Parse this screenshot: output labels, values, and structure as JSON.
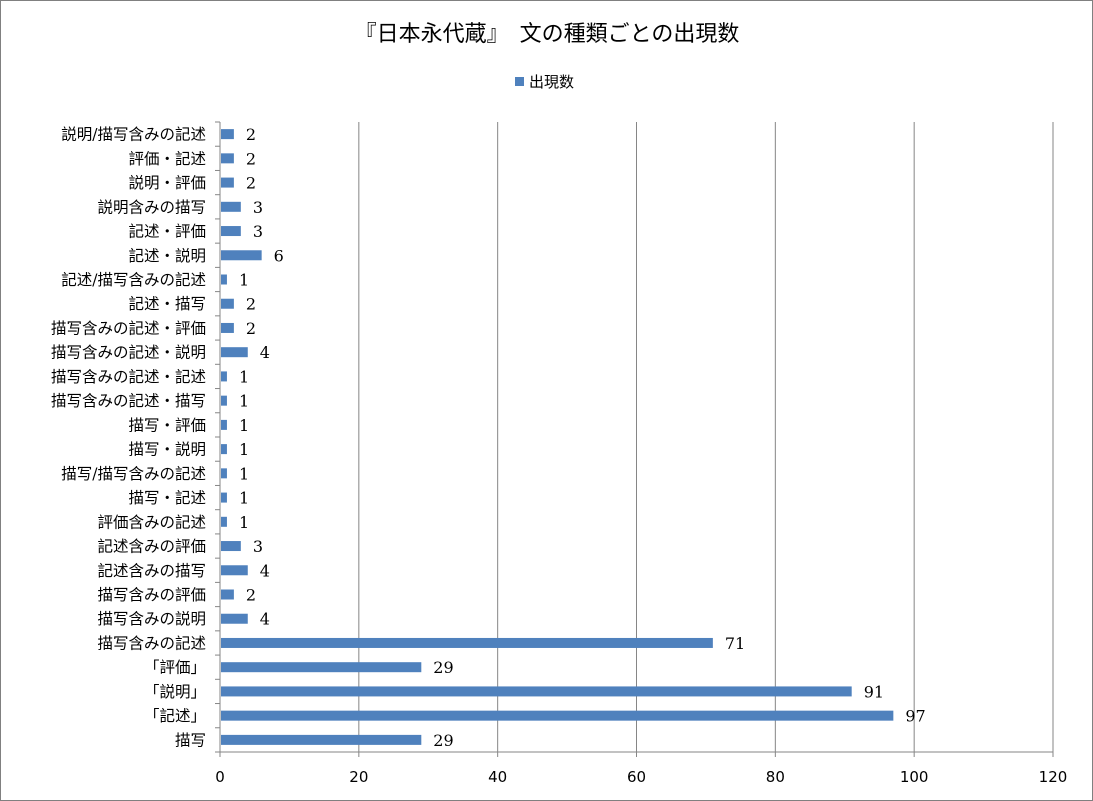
{
  "chart_data": {
    "type": "bar",
    "orientation": "horizontal",
    "title": "『日本永代蔵』　文の種類ごとの出現数",
    "legend": {
      "position": "top",
      "entries": [
        "出現数"
      ]
    },
    "series": [
      {
        "name": "出現数",
        "color": "#4f81bd",
        "values": [
          2,
          2,
          2,
          3,
          3,
          6,
          1,
          2,
          2,
          4,
          1,
          1,
          1,
          1,
          1,
          1,
          1,
          3,
          4,
          2,
          4,
          71,
          29,
          91,
          97,
          29
        ]
      }
    ],
    "categories": [
      "説明/描写含みの記述",
      "評価・記述",
      "説明・評価",
      "説明含みの描写",
      "記述・評価",
      "記述・説明",
      "記述/描写含みの記述",
      "記述・描写",
      "描写含みの記述・評価",
      "描写含みの記述・説明",
      "描写含みの記述・記述",
      "描写含みの記述・描写",
      "描写・評価",
      "描写・説明",
      "描写/描写含みの記述",
      "描写・記述",
      "評価含みの記述",
      "記述含みの評価",
      "記述含みの描写",
      "描写含みの評価",
      "描写含みの説明",
      "描写含みの記述",
      "「評価」",
      "「説明」",
      "「記述」",
      "描写"
    ],
    "xlim": [
      0,
      120
    ],
    "xticks": [
      0,
      20,
      40,
      60,
      80,
      100,
      120
    ],
    "grid": "vertical major gridlines",
    "data_labels": true,
    "xlabel": "",
    "ylabel": ""
  }
}
